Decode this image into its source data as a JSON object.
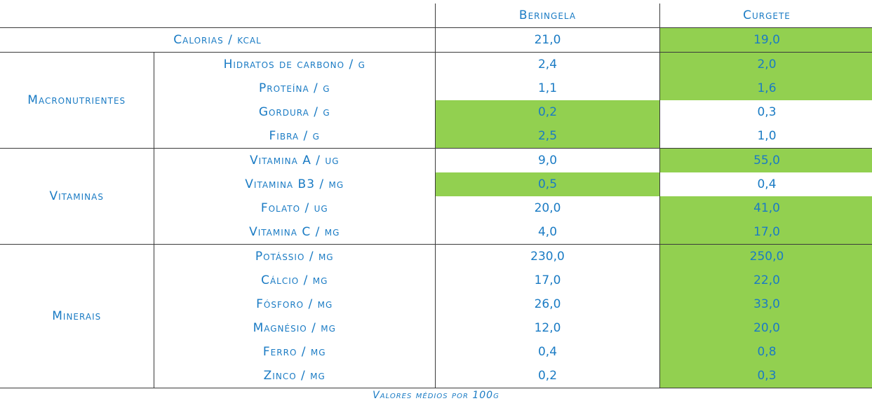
{
  "table": {
    "header": {
      "col_a": "Beringela",
      "col_b": "Curgete"
    },
    "calories": {
      "label": "Calorias / kcal",
      "a": "21,0",
      "b": "19,0"
    },
    "groups": [
      {
        "name": "Macronutrientes",
        "rows": [
          {
            "label": "Hidratos de carbono / g",
            "a": "2,4",
            "b": "2,0"
          },
          {
            "label": "Proteína / g",
            "a": "1,1",
            "b": "1,6"
          },
          {
            "label": "Gordura / g",
            "a": "0,2",
            "b": "0,3"
          },
          {
            "label": "Fibra / g",
            "a": "2,5",
            "b": "1,0"
          }
        ]
      },
      {
        "name": "Vitaminas",
        "rows": [
          {
            "label": "Vitamina A / ug",
            "a": "9,0",
            "b": "55,0"
          },
          {
            "label": "Vitamina B3 / mg",
            "a": "0,5",
            "b": "0,4"
          },
          {
            "label": "Folato / ug",
            "a": "20,0",
            "b": "41,0"
          },
          {
            "label": "Vitamina C / mg",
            "a": "4,0",
            "b": "17,0"
          }
        ]
      },
      {
        "name": "Minerais",
        "rows": [
          {
            "label": "Potássio / mg",
            "a": "230,0",
            "b": "250,0"
          },
          {
            "label": "Cálcio / mg",
            "a": "17,0",
            "b": "22,0"
          },
          {
            "label": "Fósforo / mg",
            "a": "26,0",
            "b": "33,0"
          },
          {
            "label": "Magnésio / mg",
            "a": "12,0",
            "b": "20,0"
          },
          {
            "label": "Ferro / mg",
            "a": "0,4",
            "b": "0,8"
          },
          {
            "label": "Zinco / mg",
            "a": "0,2",
            "b": "0,3"
          }
        ]
      }
    ]
  },
  "footnote": "Valores médios por 100g",
  "colors": {
    "text": "#1a7bc4",
    "highlight": "#92d050",
    "rule": "#3a3a3a"
  }
}
